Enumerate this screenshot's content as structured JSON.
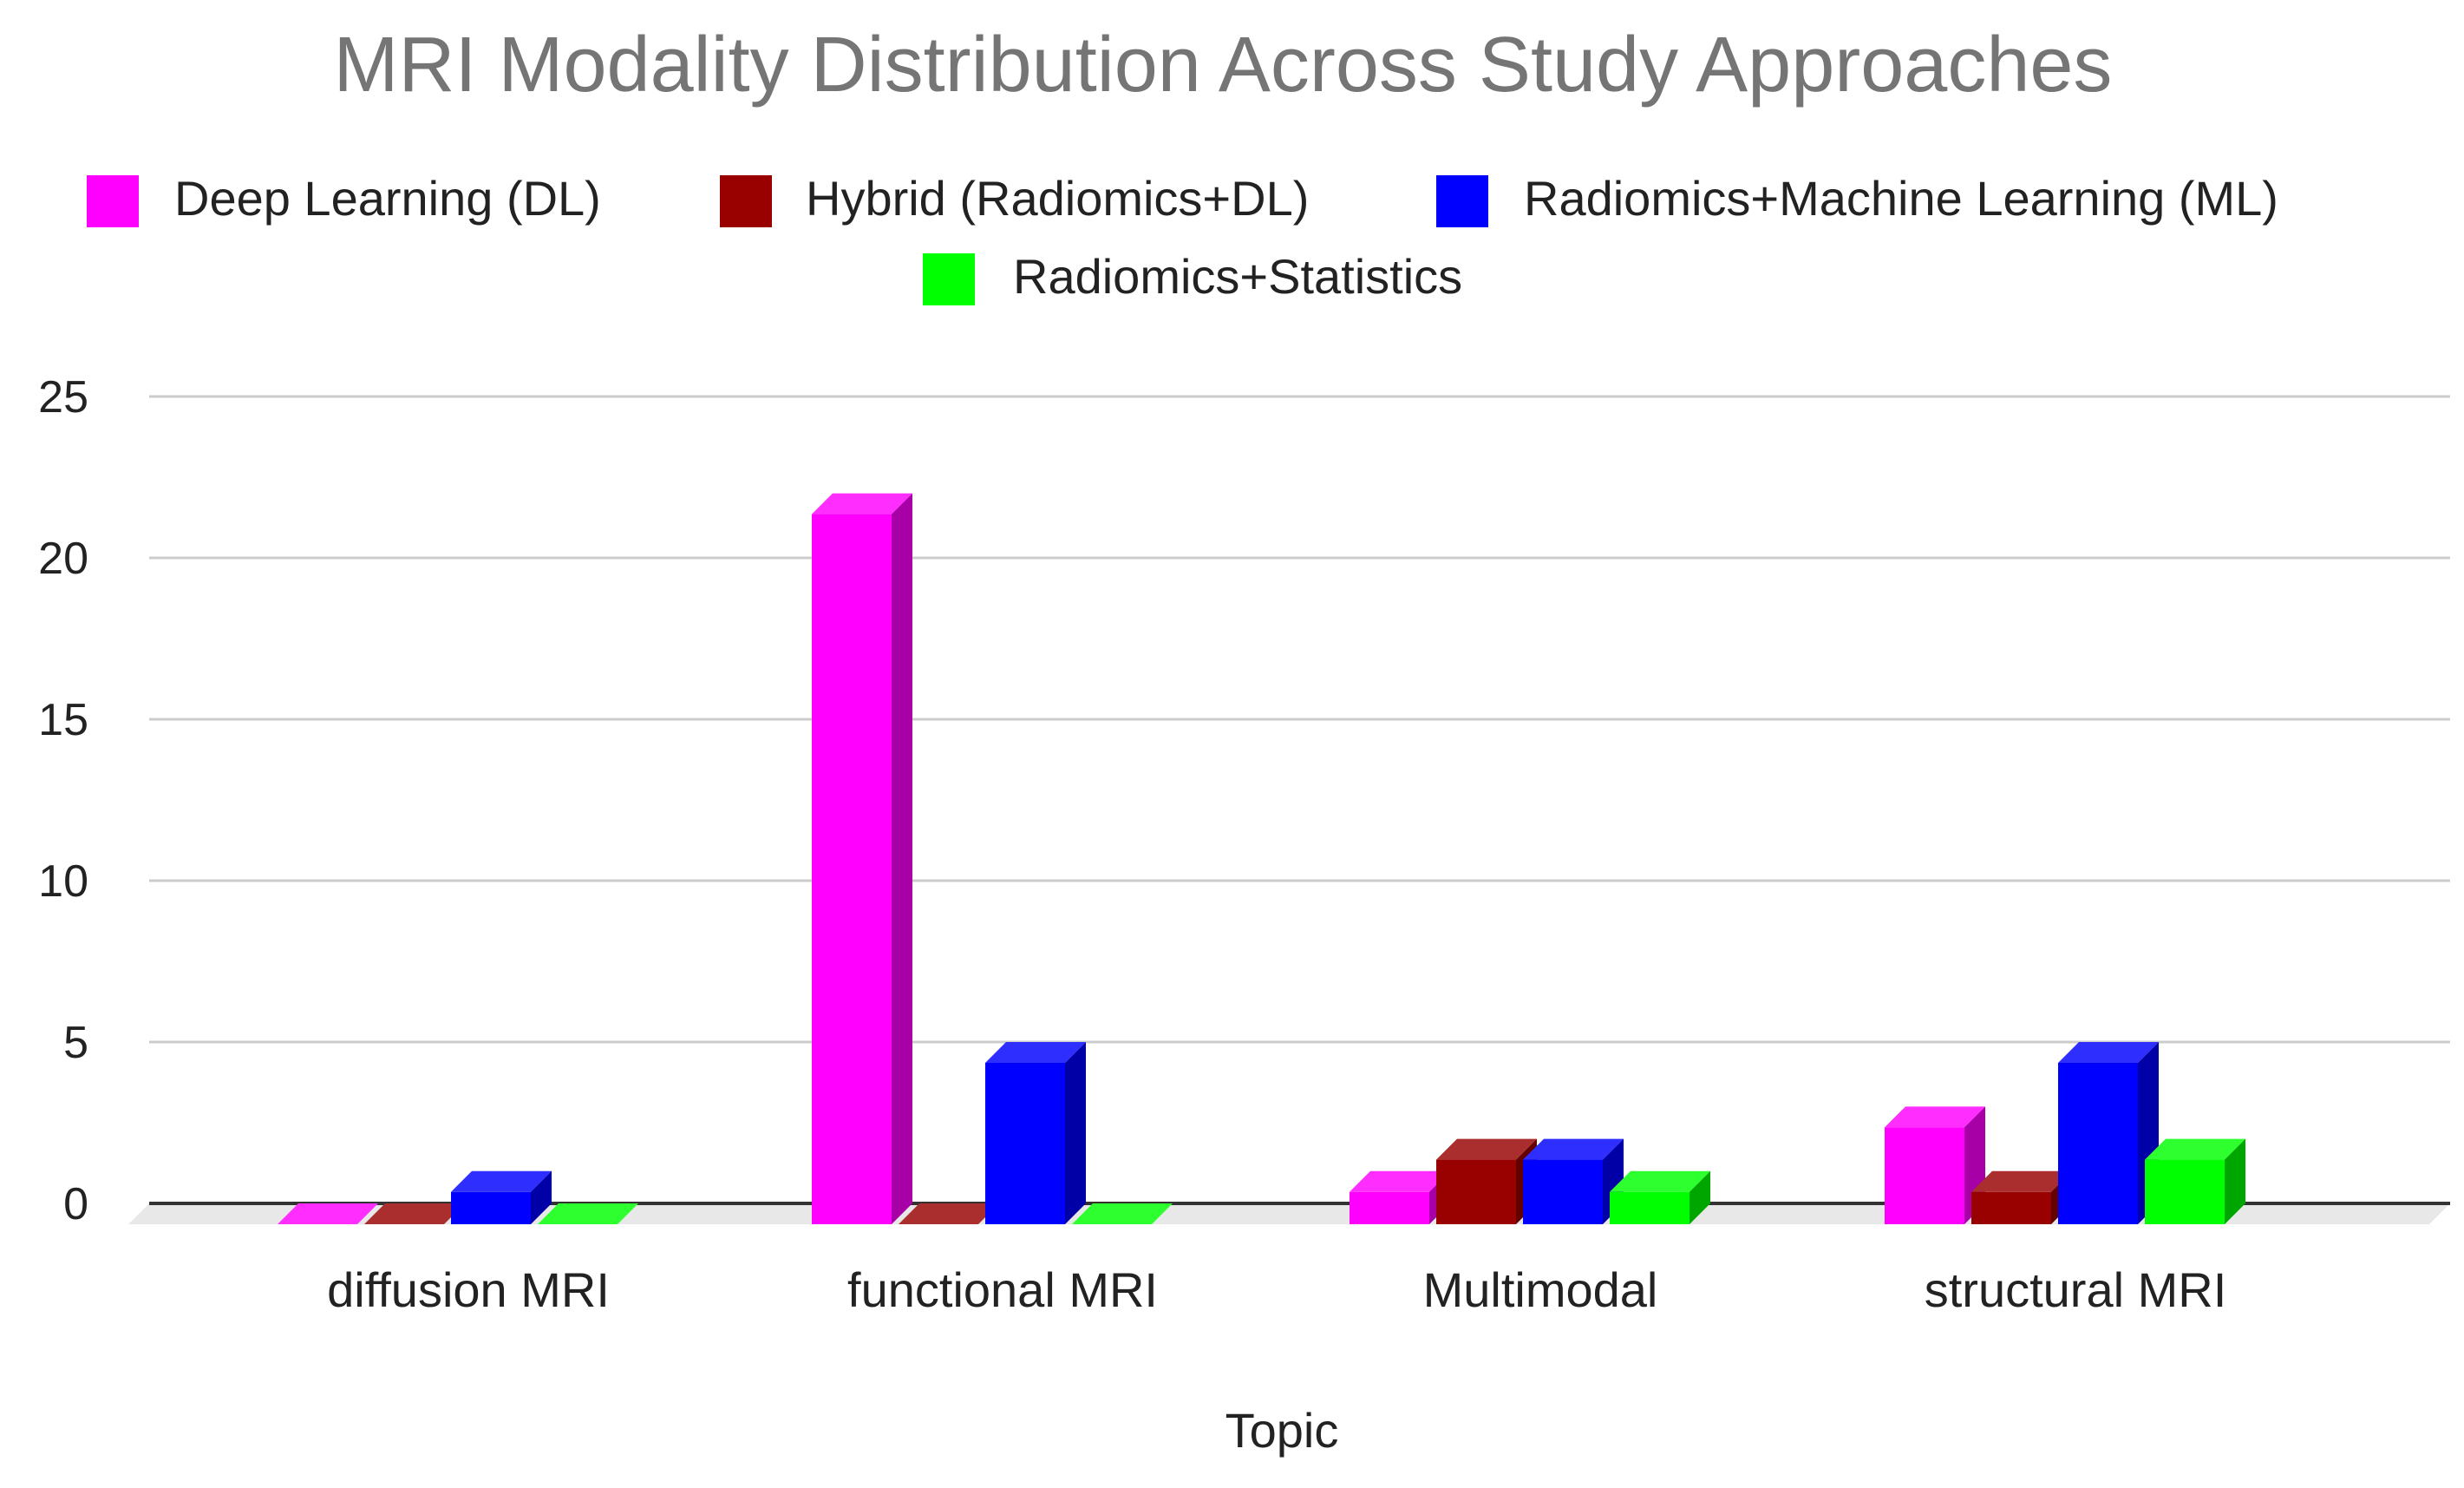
{
  "chart_data": {
    "type": "bar",
    "title": "MRI Modality Distribution Across Study Approaches",
    "xlabel": "Topic",
    "ylabel": "",
    "ylim": [
      0,
      25
    ],
    "yticks": [
      "0",
      "5",
      "10",
      "15",
      "20",
      "25"
    ],
    "grid": true,
    "legend_position": "top",
    "categories": [
      "diffusion MRI",
      "functional MRI",
      "Multimodal",
      "structural MRI"
    ],
    "series": [
      {
        "name": "Deep Learning (DL)",
        "color": "#ff00ff",
        "values": [
          0,
          22,
          1,
          3
        ]
      },
      {
        "name": "Hybrid (Radiomics+DL)",
        "color": "#990000",
        "values": [
          0,
          0,
          2,
          1
        ]
      },
      {
        "name": "Radiomics+Machine Learning (ML)",
        "color": "#0000ff",
        "values": [
          1,
          5,
          2,
          5
        ]
      },
      {
        "name": "Radiomics+Statistics",
        "color": "#00ff00",
        "values": [
          0,
          0,
          1,
          2
        ]
      }
    ]
  }
}
